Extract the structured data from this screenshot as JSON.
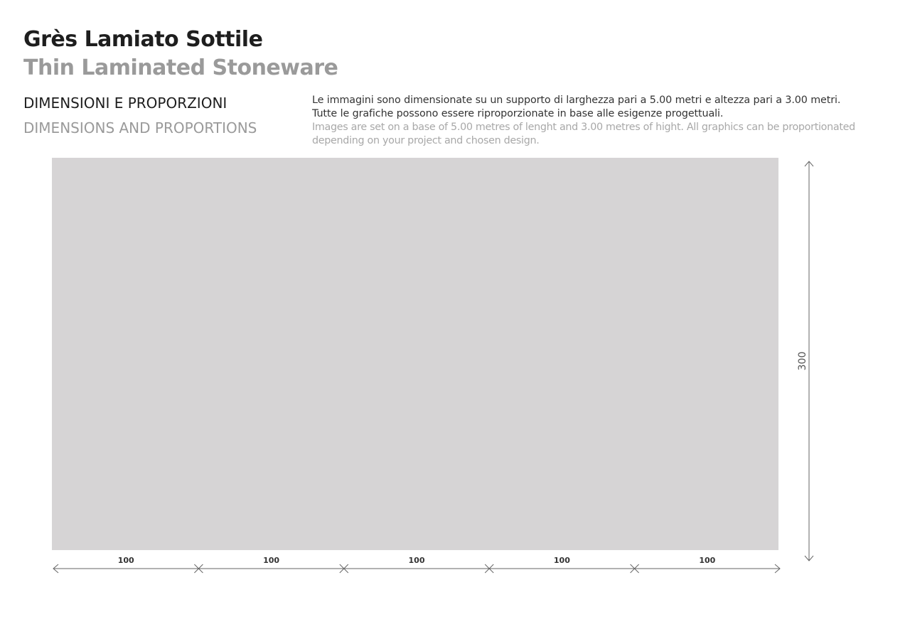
{
  "header": {
    "title": "Grès Lamiato Sottile",
    "subtitle": "Thin Laminated Stoneware",
    "section_it": "DIMENSIONI E PROPORZIONI",
    "section_en": "DIMENSIONS AND PROPORTIONS"
  },
  "description": {
    "it_line1": "Le immagini sono dimensionate su un supporto di larghezza pari a 5.00 metri e altezza pari a 3.00 metri.",
    "it_line2": "Tutte le grafiche possono essere riproporzionate in base alle esigenze progettuali.",
    "en_line1": "Images are set on a base of 5.00 metres of lenght and 3.00 metres of hight. All graphics can be proportionated",
    "en_line2": "depending on your project and chosen design."
  },
  "panel": {
    "color": "#d6d4d5"
  },
  "dimensions": {
    "width_segments": [
      "100",
      "100",
      "100",
      "100",
      "100"
    ],
    "height_label": "300"
  }
}
